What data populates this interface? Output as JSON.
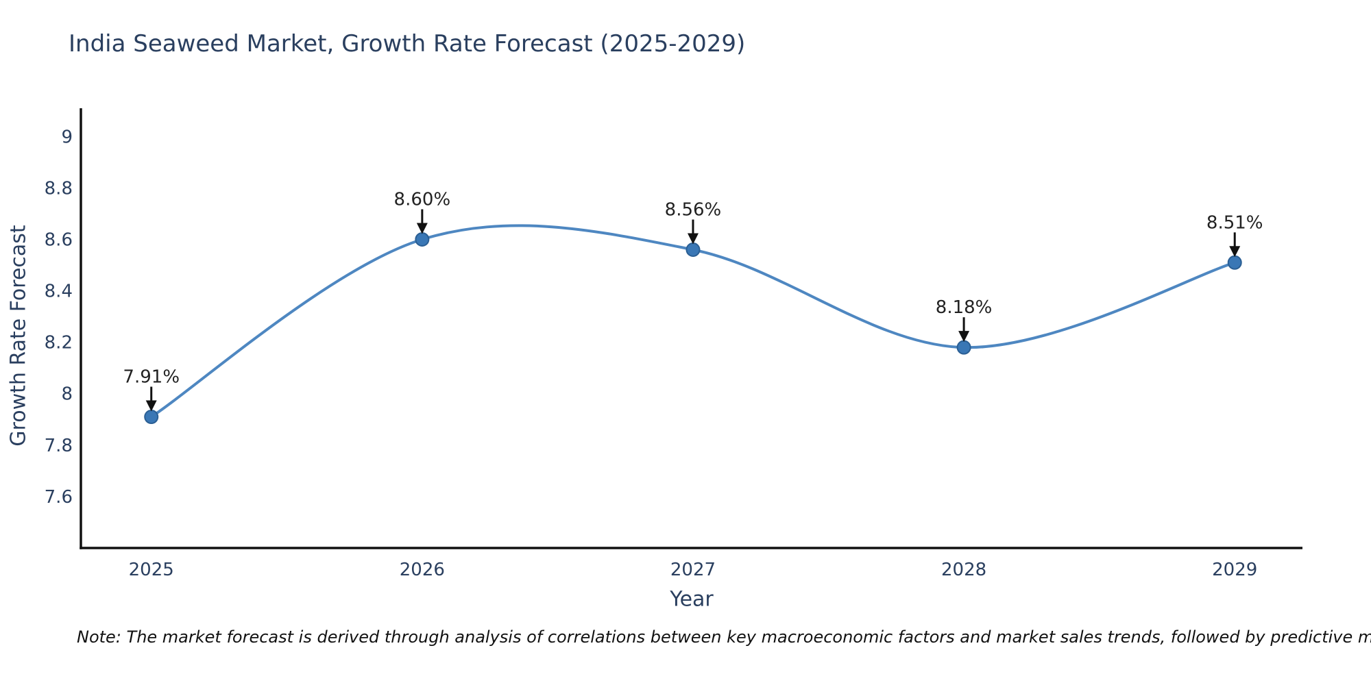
{
  "title": "India Seaweed Market, Growth Rate Forecast (2025-2029)",
  "note": "Note: The market forecast is derived through analysis of correlations between key macroeconomic factors and market sales trends, followed by predictive modeling to project future sales",
  "chart_data": {
    "type": "line",
    "title": "India Seaweed Market, Growth Rate Forecast (2025-2029)",
    "xlabel": "Year",
    "ylabel": "Growth Rate Forecast",
    "x": [
      2025,
      2026,
      2027,
      2028,
      2029
    ],
    "values": [
      7.91,
      8.6,
      8.56,
      8.18,
      8.51
    ],
    "point_labels": [
      "7.91%",
      "8.60%",
      "8.56%",
      "8.18%",
      "8.51%"
    ],
    "line_shape": "spline",
    "grid": false,
    "legend": "none",
    "xlim": [
      2024.74,
      2029.25
    ],
    "ylim": [
      7.4,
      9.11
    ],
    "xticks": [
      2025,
      2026,
      2027,
      2028,
      2029
    ],
    "xtick_labels": [
      "2025",
      "2026",
      "2027",
      "2028",
      "2029"
    ],
    "yticks": [
      7.6,
      7.8,
      8,
      8.2,
      8.4,
      8.6,
      8.8,
      9
    ],
    "ytick_labels": [
      "7.6",
      "7.8",
      "8",
      "8.2",
      "8.4",
      "8.6",
      "8.8",
      "9"
    ],
    "colors": {
      "line": "#4e87c1",
      "marker": "#3a77b5",
      "marker_border": "#2b5f94",
      "axis": "#111111",
      "tick_text": "#2a3f5f",
      "annotation_text": "#222222",
      "arrow": "#111111",
      "background": "#ffffff"
    }
  }
}
